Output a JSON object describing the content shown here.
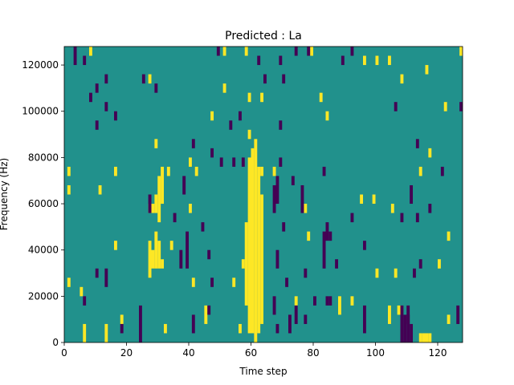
{
  "chart_data": {
    "type": "heatmap",
    "title": "Predicted : La",
    "xlabel": "Time step",
    "ylabel": "Frequency (Hz)",
    "xlim": [
      0,
      128
    ],
    "ylim": [
      0,
      128000
    ],
    "xticks": [
      0,
      20,
      40,
      60,
      80,
      100,
      120
    ],
    "yticks": [
      0,
      20000,
      40000,
      60000,
      80000,
      100000,
      120000
    ],
    "grid": false,
    "n_cols": 128,
    "n_rows": 32,
    "colors": {
      "background_level": "#21918c",
      "high": "#fde725",
      "low": "#440154"
    },
    "background_level": "mid",
    "high_runs_col_rowstart_rowend": [
      [
        59,
        1,
        19
      ],
      [
        60,
        1,
        20
      ],
      [
        61,
        0,
        21
      ],
      [
        62,
        1,
        18
      ],
      [
        63,
        2,
        15
      ],
      [
        58,
        4,
        12
      ],
      [
        27,
        7,
        10
      ],
      [
        28,
        8,
        9
      ],
      [
        29,
        8,
        11
      ],
      [
        30,
        8,
        10
      ],
      [
        31,
        8,
        8
      ],
      [
        28,
        14,
        14
      ],
      [
        29,
        14,
        15
      ],
      [
        30,
        13,
        17
      ],
      [
        31,
        15,
        18
      ],
      [
        6,
        0,
        1
      ],
      [
        13,
        0,
        1
      ],
      [
        18,
        2,
        2
      ],
      [
        32,
        1,
        1
      ],
      [
        41,
        6,
        6
      ],
      [
        45,
        2,
        3
      ],
      [
        56,
        1,
        1
      ],
      [
        74,
        4,
        4
      ],
      [
        88,
        3,
        4
      ],
      [
        92,
        4,
        4
      ],
      [
        104,
        2,
        3
      ],
      [
        107,
        3,
        3
      ],
      [
        114,
        0,
        0
      ],
      [
        115,
        0,
        0
      ],
      [
        116,
        0,
        0
      ],
      [
        117,
        0,
        0
      ],
      [
        123,
        2,
        2
      ],
      [
        120,
        8,
        8
      ],
      [
        123,
        11,
        11
      ],
      [
        99,
        15,
        15
      ],
      [
        95,
        15,
        15
      ],
      [
        105,
        14,
        14
      ],
      [
        114,
        18,
        18
      ],
      [
        117,
        20,
        20
      ],
      [
        122,
        25,
        25
      ],
      [
        108,
        28,
        28
      ],
      [
        116,
        29,
        29
      ],
      [
        82,
        26,
        26
      ],
      [
        84,
        24,
        24
      ],
      [
        51,
        27,
        27
      ],
      [
        27,
        28,
        28
      ],
      [
        29,
        21,
        21
      ],
      [
        33,
        18,
        18
      ],
      [
        40,
        19,
        19
      ],
      [
        42,
        18,
        18
      ],
      [
        47,
        24,
        24
      ],
      [
        16,
        18,
        18
      ],
      [
        11,
        16,
        16
      ],
      [
        1,
        16,
        16
      ],
      [
        1,
        18,
        18
      ],
      [
        1,
        6,
        6
      ],
      [
        5,
        5,
        5
      ],
      [
        16,
        10,
        10
      ],
      [
        27,
        14,
        14
      ],
      [
        34,
        10,
        10
      ],
      [
        40,
        14,
        14
      ],
      [
        54,
        6,
        6
      ],
      [
        57,
        8,
        8
      ],
      [
        63,
        26,
        26
      ],
      [
        59,
        26,
        26
      ],
      [
        59,
        22,
        22
      ],
      [
        67,
        18,
        18
      ],
      [
        63,
        18,
        18
      ],
      [
        78,
        11,
        11
      ],
      [
        77,
        14,
        14
      ],
      [
        100,
        7,
        7
      ],
      [
        106,
        7,
        7
      ],
      [
        8,
        31,
        31
      ],
      [
        51,
        31,
        31
      ],
      [
        58,
        31,
        31
      ],
      [
        96,
        30,
        30
      ],
      [
        100,
        30,
        30
      ],
      [
        104,
        30,
        30
      ],
      [
        79,
        31,
        31
      ],
      [
        127,
        31,
        31
      ]
    ],
    "low_runs_col_rowstart_rowend": [
      [
        3,
        30,
        31
      ],
      [
        6,
        30,
        30
      ],
      [
        10,
        27,
        27
      ],
      [
        13,
        28,
        28
      ],
      [
        8,
        26,
        26
      ],
      [
        13,
        25,
        25
      ],
      [
        16,
        24,
        24
      ],
      [
        10,
        23,
        23
      ],
      [
        25,
        28,
        28
      ],
      [
        29,
        27,
        27
      ],
      [
        41,
        21,
        21
      ],
      [
        38,
        16,
        17
      ],
      [
        35,
        13,
        13
      ],
      [
        39,
        8,
        11
      ],
      [
        37,
        8,
        9
      ],
      [
        44,
        12,
        12
      ],
      [
        46,
        9,
        9
      ],
      [
        47,
        6,
        6
      ],
      [
        46,
        3,
        3
      ],
      [
        41,
        1,
        2
      ],
      [
        24,
        0,
        3
      ],
      [
        18,
        1,
        1
      ],
      [
        6,
        4,
        4
      ],
      [
        10,
        7,
        7
      ],
      [
        13,
        6,
        7
      ],
      [
        27,
        14,
        15
      ],
      [
        49,
        31,
        31
      ],
      [
        62,
        30,
        30
      ],
      [
        69,
        30,
        30
      ],
      [
        74,
        31,
        31
      ],
      [
        78,
        31,
        31
      ],
      [
        89,
        30,
        30
      ],
      [
        92,
        31,
        31
      ],
      [
        106,
        25,
        25
      ],
      [
        113,
        21,
        21
      ],
      [
        111,
        15,
        16
      ],
      [
        108,
        13,
        13
      ],
      [
        112,
        7,
        7
      ],
      [
        114,
        8,
        8
      ],
      [
        110,
        2,
        3
      ],
      [
        108,
        0,
        3
      ],
      [
        109,
        0,
        2
      ],
      [
        110,
        0,
        2
      ],
      [
        111,
        0,
        1
      ],
      [
        126,
        2,
        3
      ],
      [
        96,
        1,
        3
      ],
      [
        85,
        4,
        4
      ],
      [
        83,
        8,
        11
      ],
      [
        84,
        11,
        12
      ],
      [
        85,
        11,
        11
      ],
      [
        87,
        8,
        8
      ],
      [
        96,
        10,
        10
      ],
      [
        92,
        13,
        13
      ],
      [
        83,
        18,
        18
      ],
      [
        76,
        14,
        16
      ],
      [
        73,
        17,
        17
      ],
      [
        67,
        14,
        16
      ],
      [
        68,
        15,
        17
      ],
      [
        70,
        12,
        12
      ],
      [
        68,
        8,
        9
      ],
      [
        71,
        6,
        6
      ],
      [
        67,
        3,
        4
      ],
      [
        68,
        1,
        1
      ],
      [
        72,
        1,
        2
      ],
      [
        74,
        2,
        3
      ],
      [
        77,
        2,
        2
      ],
      [
        80,
        4,
        4
      ],
      [
        84,
        4,
        4
      ],
      [
        77,
        7,
        7
      ],
      [
        56,
        24,
        24
      ],
      [
        53,
        23,
        23
      ],
      [
        57,
        19,
        19
      ],
      [
        54,
        19,
        19
      ],
      [
        50,
        19,
        19
      ],
      [
        47,
        20,
        20
      ],
      [
        64,
        28,
        28
      ],
      [
        70,
        28,
        28
      ],
      [
        69,
        23,
        23
      ],
      [
        69,
        19,
        19
      ],
      [
        127,
        25,
        25
      ],
      [
        121,
        18,
        18
      ],
      [
        113,
        13,
        13
      ],
      [
        117,
        14,
        14
      ]
    ]
  }
}
